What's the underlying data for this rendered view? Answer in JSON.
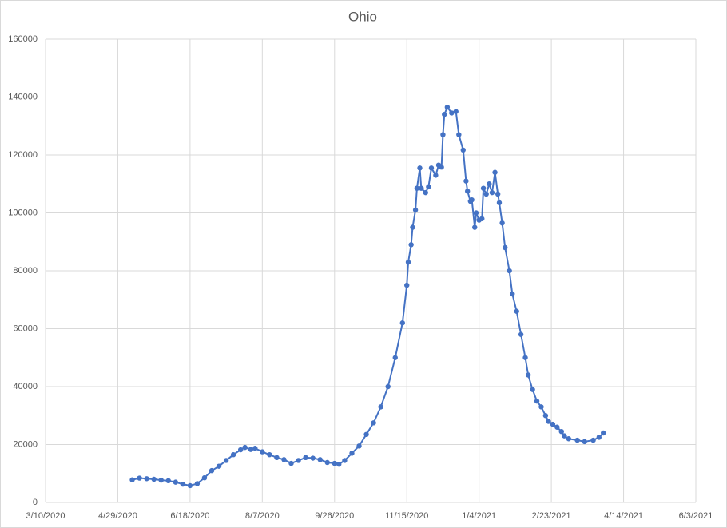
{
  "chart_data": {
    "type": "line",
    "title": "Ohio",
    "x": [
      "5/9/2020",
      "5/14/2020",
      "5/19/2020",
      "5/24/2020",
      "5/29/2020",
      "6/3/2020",
      "6/8/2020",
      "6/13/2020",
      "6/18/2020",
      "6/23/2020",
      "6/28/2020",
      "7/3/2020",
      "7/8/2020",
      "7/13/2020",
      "7/18/2020",
      "7/23/2020",
      "7/26/2020",
      "7/30/2020",
      "8/2/2020",
      "8/7/2020",
      "8/12/2020",
      "8/17/2020",
      "8/22/2020",
      "8/27/2020",
      "9/1/2020",
      "9/6/2020",
      "9/11/2020",
      "9/16/2020",
      "9/21/2020",
      "9/26/2020",
      "9/29/2020",
      "10/3/2020",
      "10/8/2020",
      "10/13/2020",
      "10/18/2020",
      "10/23/2020",
      "10/28/2020",
      "11/2/2020",
      "11/7/2020",
      "11/12/2020",
      "11/15/2020",
      "11/16/2020",
      "11/18/2020",
      "11/19/2020",
      "11/21/2020",
      "11/22/2020",
      "11/24/2020",
      "11/25/2020",
      "11/28/2020",
      "11/30/2020",
      "12/2/2020",
      "12/5/2020",
      "12/7/2020",
      "12/9/2020",
      "12/10/2020",
      "12/11/2020",
      "12/13/2020",
      "12/16/2020",
      "12/19/2020",
      "12/21/2020",
      "12/24/2020",
      "12/26/2020",
      "12/27/2020",
      "12/29/2020",
      "12/30/2020",
      "1/1/2021",
      "1/2/2021",
      "1/4/2021",
      "1/6/2021",
      "1/7/2021",
      "1/9/2021",
      "1/11/2021",
      "1/13/2021",
      "1/15/2021",
      "1/17/2021",
      "1/18/2021",
      "1/20/2021",
      "1/22/2021",
      "1/25/2021",
      "1/27/2021",
      "1/30/2021",
      "2/2/2021",
      "2/5/2021",
      "2/7/2021",
      "2/10/2021",
      "2/13/2021",
      "2/16/2021",
      "2/19/2021",
      "2/21/2021",
      "2/24/2021",
      "2/27/2021",
      "3/2/2021",
      "3/4/2021",
      "3/7/2021",
      "3/13/2021",
      "3/18/2021",
      "3/24/2021",
      "3/28/2021",
      "3/31/2021"
    ],
    "series": [
      {
        "color": "#4472c4",
        "values": [
          7800,
          8400,
          8200,
          8000,
          7700,
          7500,
          7000,
          6300,
          5800,
          6500,
          8500,
          11000,
          12500,
          14500,
          16500,
          18200,
          19000,
          18300,
          18700,
          17500,
          16500,
          15500,
          14800,
          13500,
          14500,
          15500,
          15300,
          14800,
          13800,
          13500,
          13200,
          14500,
          17000,
          19500,
          23500,
          27500,
          33000,
          40000,
          50000,
          62000,
          75000,
          83000,
          89000,
          95000,
          101000,
          108500,
          115500,
          108500,
          107000,
          109000,
          115500,
          113000,
          116500,
          115800,
          127000,
          134000,
          136500,
          134500,
          135000,
          127000,
          121700,
          111000,
          107500,
          104000,
          104500,
          95000,
          100000,
          97500,
          98000,
          108500,
          106500,
          110000,
          107000,
          114000,
          106500,
          103500,
          96500,
          88000,
          80000,
          72000,
          66000,
          58000,
          50000,
          44000,
          39000,
          35000,
          33000,
          30000,
          28000,
          27000,
          26000,
          24500,
          23000,
          22000,
          21500,
          21000,
          21500,
          22500,
          24000
        ]
      }
    ],
    "xlim": [
      "3/10/2020",
      "6/3/2021"
    ],
    "xticks": [
      "3/10/2020",
      "4/29/2020",
      "6/18/2020",
      "8/7/2020",
      "9/26/2020",
      "11/15/2020",
      "1/4/2021",
      "2/23/2021",
      "4/14/2021",
      "6/3/2021"
    ],
    "ylim": [
      0,
      160000
    ],
    "yticks": [
      0,
      20000,
      40000,
      60000,
      80000,
      100000,
      120000,
      140000,
      160000
    ],
    "grid": true
  }
}
